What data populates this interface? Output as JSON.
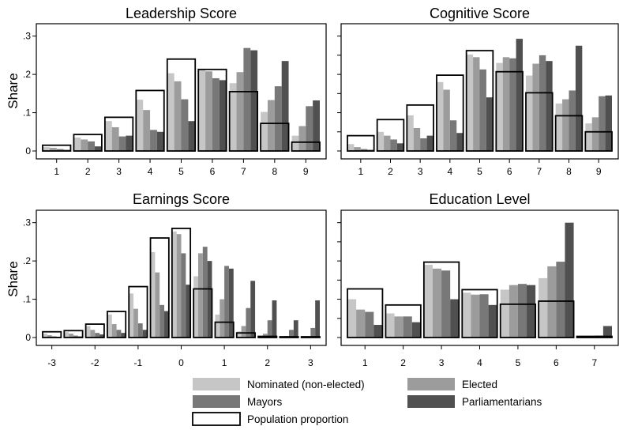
{
  "legend": {
    "items": [
      {
        "key": "nominated",
        "label": "Nominated (non-elected)",
        "color": "#c6c6c6"
      },
      {
        "key": "elected",
        "label": "Elected",
        "color": "#9c9c9c"
      },
      {
        "key": "mayors",
        "label": "Mayors",
        "color": "#787878"
      },
      {
        "key": "parliamentarians",
        "label": "Parliamentarians",
        "color": "#505050"
      },
      {
        "key": "population",
        "label": "Population proportion",
        "color": "#000000"
      }
    ]
  },
  "chart_data": [
    {
      "type": "bar",
      "title": "Leadership Score",
      "ylabel": "Share",
      "ylim": [
        0,
        0.32
      ],
      "yticks": [
        0,
        0.1,
        0.2,
        0.3
      ],
      "ytick_labels": [
        "0",
        ".1",
        ".2",
        ".3"
      ],
      "categories": [
        "1",
        "2",
        "3",
        "4",
        "5",
        "6",
        "7",
        "8",
        "9"
      ],
      "population": [
        0.015,
        0.043,
        0.088,
        0.158,
        0.24,
        0.213,
        0.155,
        0.072,
        0.023
      ],
      "series": [
        {
          "name": "Nominated (non-elected)",
          "values": [
            0.01,
            0.035,
            0.078,
            0.134,
            0.203,
            0.213,
            0.177,
            0.102,
            0.04
          ]
        },
        {
          "name": "Elected",
          "values": [
            0.008,
            0.03,
            0.062,
            0.107,
            0.182,
            0.208,
            0.206,
            0.133,
            0.065
          ]
        },
        {
          "name": "Mayors",
          "values": [
            0.005,
            0.025,
            0.038,
            0.055,
            0.135,
            0.19,
            0.269,
            0.169,
            0.117
          ]
        },
        {
          "name": "Parliamentarians",
          "values": [
            0.003,
            0.012,
            0.04,
            0.05,
            0.078,
            0.185,
            0.263,
            0.235,
            0.132
          ]
        }
      ]
    },
    {
      "type": "bar",
      "title": "Cognitive Score",
      "ylabel": "",
      "ylim": [
        0,
        0.32
      ],
      "yticks": [
        0,
        0.05,
        0.1,
        0.15,
        0.2,
        0.25,
        0.3
      ],
      "ytick_labels": [
        "",
        "",
        "",
        "",
        "",
        "",
        ""
      ],
      "categories": [
        "1",
        "2",
        "3",
        "4",
        "5",
        "6",
        "7",
        "8",
        "9"
      ],
      "population": [
        0.04,
        0.082,
        0.12,
        0.198,
        0.262,
        0.207,
        0.152,
        0.092,
        0.05
      ],
      "series": [
        {
          "name": "Nominated (non-elected)",
          "values": [
            0.018,
            0.05,
            0.093,
            0.18,
            0.252,
            0.23,
            0.197,
            0.124,
            0.072
          ]
        },
        {
          "name": "Elected",
          "values": [
            0.01,
            0.04,
            0.06,
            0.16,
            0.245,
            0.245,
            0.228,
            0.135,
            0.088
          ]
        },
        {
          "name": "Mayors",
          "values": [
            0.005,
            0.03,
            0.033,
            0.08,
            0.213,
            0.242,
            0.25,
            0.158,
            0.143
          ]
        },
        {
          "name": "Parliamentarians",
          "values": [
            0.003,
            0.02,
            0.04,
            0.047,
            0.14,
            0.293,
            0.235,
            0.275,
            0.145
          ]
        }
      ]
    },
    {
      "type": "bar",
      "title": "Earnings Score",
      "ylabel": "Share",
      "ylim": [
        0,
        0.32
      ],
      "yticks": [
        0,
        0.1,
        0.2,
        0.3
      ],
      "ytick_labels": [
        "0",
        ".1",
        ".2",
        ".3"
      ],
      "x_tick_labels": [
        "-3",
        "-2",
        "-1",
        "0",
        "1",
        "2",
        "3"
      ],
      "categories": [
        "-3",
        "-2.5",
        "-2",
        "-1.5",
        "-1",
        "-0.5",
        "0",
        "0.5",
        "1",
        "1.5",
        "2",
        "2.5",
        "3"
      ],
      "population": [
        0.015,
        0.018,
        0.035,
        0.068,
        0.133,
        0.26,
        0.285,
        0.127,
        0.04,
        0.012,
        0.003,
        0.002,
        0.002
      ],
      "series": [
        {
          "name": "Nominated (non-elected)",
          "values": [
            0.01,
            0.014,
            0.03,
            0.06,
            0.115,
            0.223,
            0.277,
            0.16,
            0.06,
            0.016,
            0.003,
            0.001,
            0.001
          ]
        },
        {
          "name": "Elected",
          "values": [
            0.006,
            0.01,
            0.02,
            0.035,
            0.075,
            0.17,
            0.27,
            0.22,
            0.1,
            0.03,
            0.01,
            0.004,
            0.003
          ]
        },
        {
          "name": "Mayors",
          "values": [
            0.003,
            0.005,
            0.012,
            0.02,
            0.037,
            0.085,
            0.22,
            0.237,
            0.187,
            0.077,
            0.045,
            0.02,
            0.025
          ]
        },
        {
          "name": "Parliamentarians",
          "values": [
            0.002,
            0.003,
            0.008,
            0.012,
            0.02,
            0.069,
            0.138,
            0.2,
            0.18,
            0.148,
            0.097,
            0.045,
            0.097
          ]
        }
      ]
    },
    {
      "type": "bar",
      "title": "Education Level",
      "ylabel": "",
      "ylim": [
        0,
        0.32
      ],
      "yticks": [
        0,
        0.05,
        0.1,
        0.15,
        0.2,
        0.25,
        0.3
      ],
      "ytick_labels": [
        "",
        "",
        "",
        "",
        "",
        "",
        ""
      ],
      "categories": [
        "1",
        "2",
        "3",
        "4",
        "5",
        "6",
        "7"
      ],
      "population": [
        0.127,
        0.085,
        0.197,
        0.125,
        0.087,
        0.095,
        0.003
      ],
      "series": [
        {
          "name": "Nominated (non-elected)",
          "values": [
            0.1,
            0.063,
            0.19,
            0.117,
            0.125,
            0.155,
            0.001
          ]
        },
        {
          "name": "Elected",
          "values": [
            0.073,
            0.055,
            0.18,
            0.112,
            0.137,
            0.186,
            0.003
          ]
        },
        {
          "name": "Mayors",
          "values": [
            0.067,
            0.055,
            0.175,
            0.113,
            0.14,
            0.198,
            0.005
          ]
        },
        {
          "name": "Parliamentarians",
          "values": [
            0.033,
            0.04,
            0.1,
            0.085,
            0.137,
            0.3,
            0.03
          ]
        }
      ]
    }
  ]
}
